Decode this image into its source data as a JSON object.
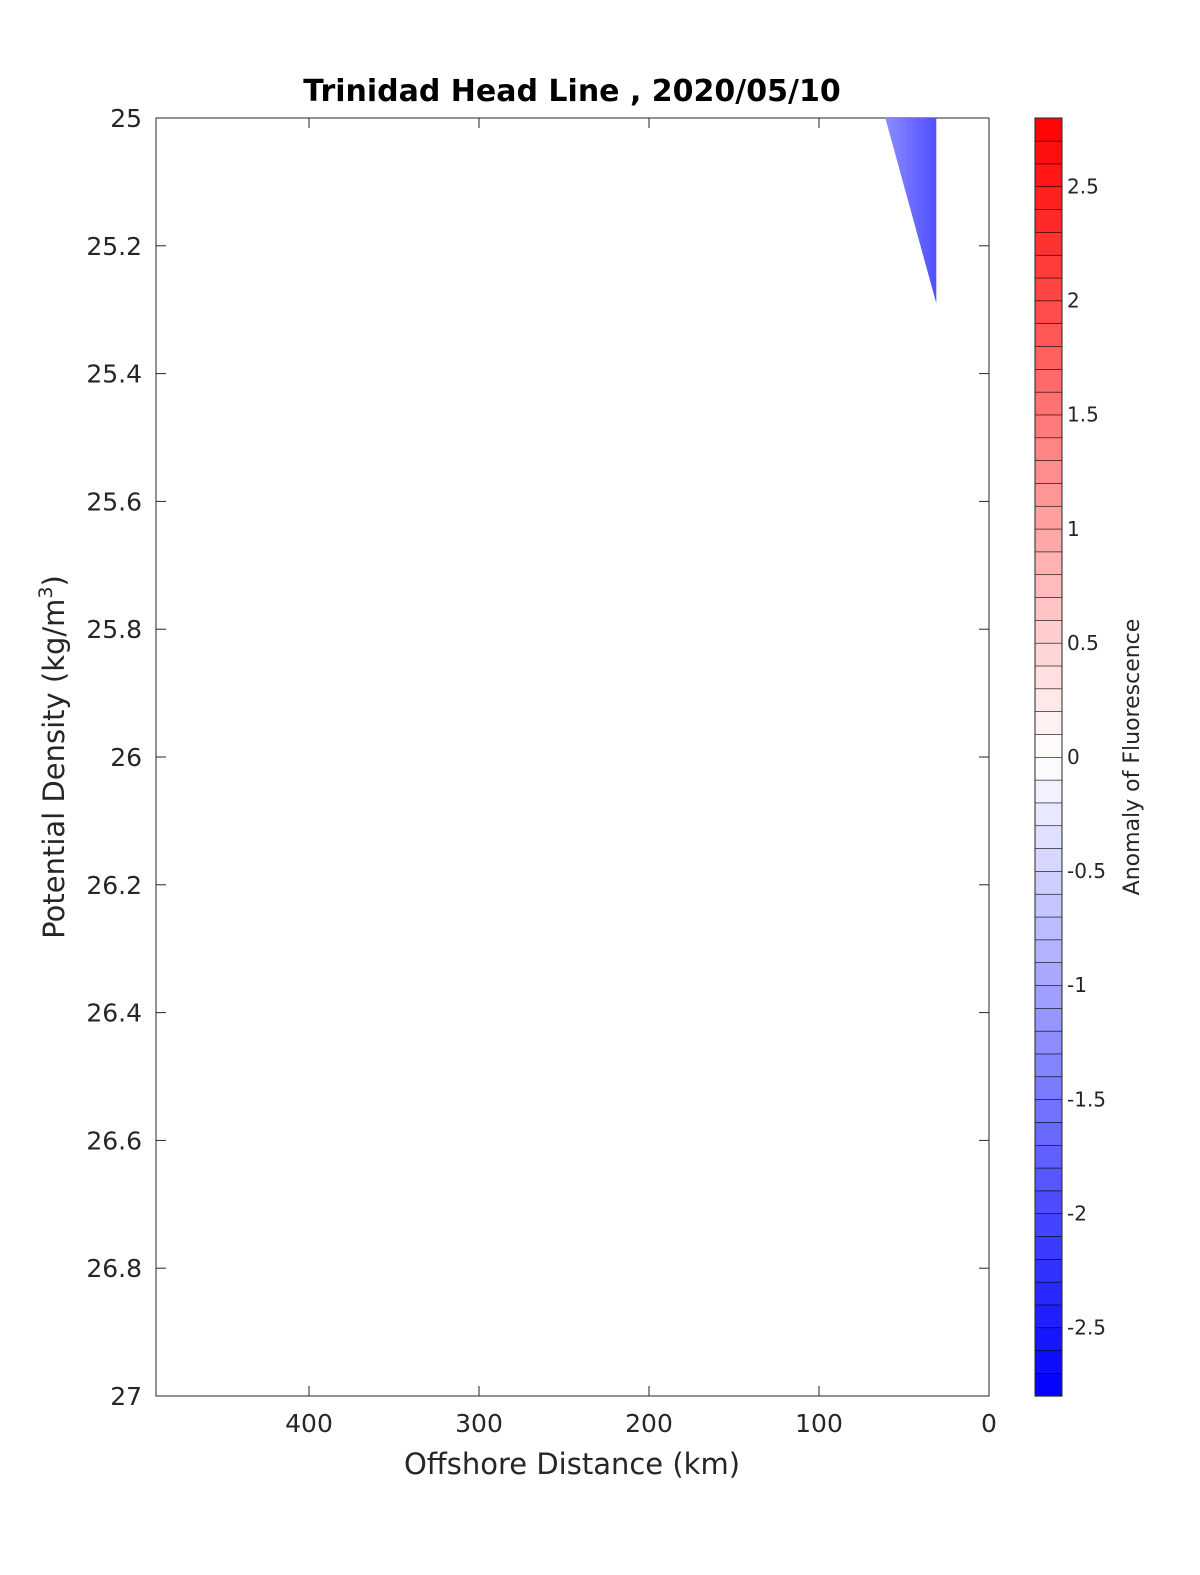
{
  "chart_data": {
    "type": "heatmap",
    "title": "Trinidad Head Line , 2020/05/10",
    "xlabel": "Offshore Distance (km)",
    "ylabel_main": "Potential Density (kg/m",
    "ylabel_sup": "3",
    "ylabel_close": ")",
    "xlim": [
      490,
      0
    ],
    "x_reversed": true,
    "ylim": [
      25,
      27
    ],
    "y_reversed": true,
    "x_ticks": [
      {
        "value": 400,
        "label": "400"
      },
      {
        "value": 300,
        "label": "300"
      },
      {
        "value": 200,
        "label": "200"
      },
      {
        "value": 100,
        "label": "100"
      },
      {
        "value": 0,
        "label": "0"
      }
    ],
    "y_ticks": [
      {
        "value": 25,
        "label": "25"
      },
      {
        "value": 25.2,
        "label": "25.2"
      },
      {
        "value": 25.4,
        "label": "25.4"
      },
      {
        "value": 25.6,
        "label": "25.6"
      },
      {
        "value": 25.8,
        "label": "25.8"
      },
      {
        "value": 26,
        "label": "26"
      },
      {
        "value": 26.2,
        "label": "26.2"
      },
      {
        "value": 26.4,
        "label": "26.4"
      },
      {
        "value": 26.6,
        "label": "26.6"
      },
      {
        "value": 26.8,
        "label": "26.8"
      },
      {
        "value": 27,
        "label": "27"
      }
    ],
    "anomaly_region": {
      "polygon": [
        [
          61,
          25.0
        ],
        [
          31,
          25.0
        ],
        [
          31,
          25.29
        ]
      ],
      "value_min": -1.5,
      "value_max": -0.9,
      "color_light": "#8c8cff",
      "color_dark": "#4f4fff"
    },
    "colorbar": {
      "label": "Anomaly of Fluorescence",
      "range": [
        -2.8,
        2.8
      ],
      "levels": 56,
      "color_low": "#0000ff",
      "color_mid": "#ffffff",
      "color_high": "#ff0000",
      "ticks": [
        {
          "value": 2.5,
          "label": "2.5"
        },
        {
          "value": 2,
          "label": "2"
        },
        {
          "value": 1.5,
          "label": "1.5"
        },
        {
          "value": 1,
          "label": "1"
        },
        {
          "value": 0.5,
          "label": "0.5"
        },
        {
          "value": 0,
          "label": "0"
        },
        {
          "value": -0.5,
          "label": "-0.5"
        },
        {
          "value": -1,
          "label": "-1"
        },
        {
          "value": -1.5,
          "label": "-1.5"
        },
        {
          "value": -2,
          "label": "-2"
        },
        {
          "value": -2.5,
          "label": "-2.5"
        }
      ]
    }
  }
}
